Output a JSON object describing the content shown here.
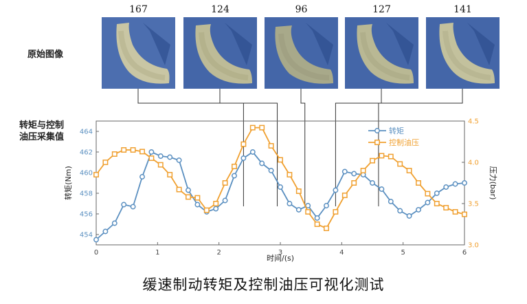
{
  "images": {
    "label": "原始图像",
    "numbers": [
      "167",
      "124",
      "96",
      "127",
      "141"
    ]
  },
  "chart_label": "转矩与控制\n油压采集值",
  "caption": "缓速制动转矩及控制油压可视化测试",
  "colors": {
    "torque": "#5a8fc0",
    "pressure": "#f0a030",
    "connector": "#333333"
  },
  "chart_data": {
    "type": "line",
    "title": "",
    "xlabel": "时间/(s)",
    "ylabel": "转矩(Nm)",
    "y2label": "压力(bar)",
    "xlim": [
      0,
      6
    ],
    "ylim": [
      453,
      465
    ],
    "y2lim": [
      3.0,
      4.5
    ],
    "x_ticks": [
      "0",
      "1",
      "2",
      "3",
      "4",
      "5",
      "6"
    ],
    "y_ticks": [
      "454",
      "456",
      "458",
      "460",
      "462",
      "464"
    ],
    "y2_ticks": [
      "3.0",
      "3.5",
      "4.0",
      "4.5"
    ],
    "legend_position": "top-right",
    "grid": false,
    "series": [
      {
        "name": "转矩",
        "axis": "left",
        "x": [
          0,
          0.15,
          0.3,
          0.45,
          0.6,
          0.75,
          0.9,
          1.05,
          1.2,
          1.35,
          1.5,
          1.65,
          1.8,
          1.95,
          2.1,
          2.25,
          2.4,
          2.55,
          2.7,
          2.85,
          3.0,
          3.15,
          3.3,
          3.45,
          3.6,
          3.75,
          3.9,
          4.05,
          4.2,
          4.35,
          4.5,
          4.65,
          4.8,
          4.95,
          5.1,
          5.25,
          5.4,
          5.55,
          5.7,
          5.85,
          6.0
        ],
        "values": [
          453.5,
          454.3,
          455.1,
          456.9,
          456.7,
          459.6,
          462.0,
          461.6,
          461.5,
          461.2,
          458.3,
          456.9,
          456.2,
          456.5,
          457.3,
          459.7,
          461.4,
          462.0,
          460.9,
          460.2,
          458.6,
          457.0,
          456.4,
          456.8,
          455.6,
          456.8,
          458.3,
          460.1,
          459.9,
          459.8,
          459.0,
          458.4,
          457.2,
          456.3,
          455.8,
          456.4,
          457.1,
          458.0,
          458.6,
          458.9,
          459.0
        ]
      },
      {
        "name": "控制油压",
        "axis": "right",
        "x": [
          0,
          0.15,
          0.3,
          0.45,
          0.6,
          0.75,
          0.9,
          1.05,
          1.2,
          1.35,
          1.5,
          1.65,
          1.8,
          1.95,
          2.1,
          2.25,
          2.4,
          2.55,
          2.7,
          2.85,
          3.0,
          3.15,
          3.3,
          3.45,
          3.6,
          3.75,
          3.9,
          4.05,
          4.2,
          4.35,
          4.5,
          4.65,
          4.8,
          4.95,
          5.1,
          5.25,
          5.4,
          5.55,
          5.7,
          5.85,
          6.0
        ],
        "values": [
          3.85,
          4.0,
          4.1,
          4.15,
          4.15,
          4.13,
          4.05,
          3.97,
          3.85,
          3.67,
          3.58,
          3.57,
          3.42,
          3.5,
          3.75,
          3.95,
          4.22,
          4.42,
          4.42,
          4.2,
          4.03,
          3.85,
          3.65,
          3.4,
          3.25,
          3.2,
          3.4,
          3.6,
          3.75,
          3.9,
          4.02,
          4.08,
          4.07,
          3.98,
          3.9,
          3.75,
          3.62,
          3.5,
          3.45,
          3.4,
          3.37
        ]
      }
    ],
    "links": [
      {
        "image": 0,
        "x": 2.4
      },
      {
        "image": 1,
        "x": 2.95
      },
      {
        "image": 2,
        "x": 3.4
      },
      {
        "image": 3,
        "x": 3.9
      },
      {
        "image": 4,
        "x": 4.6
      }
    ]
  }
}
